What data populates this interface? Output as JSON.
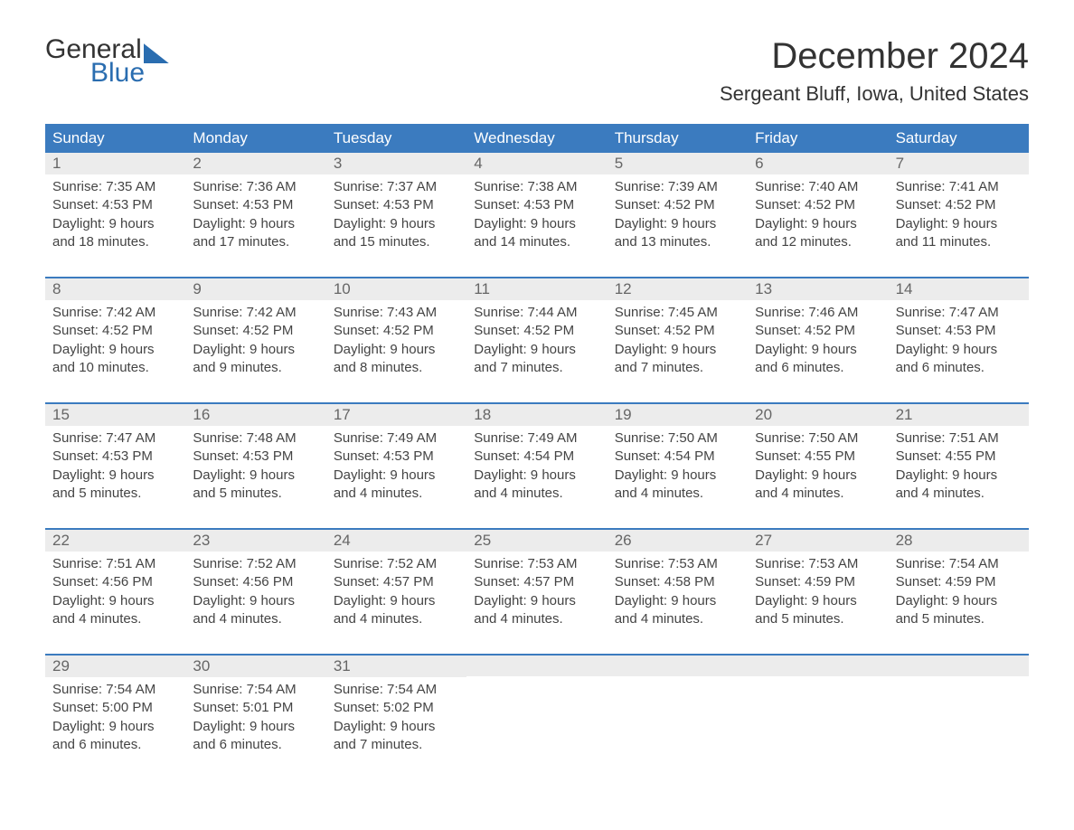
{
  "logo": {
    "text1": "General",
    "text2": "Blue"
  },
  "title": "December 2024",
  "location": "Sergeant Bluff, Iowa, United States",
  "colors": {
    "header_bg": "#3b7bbf",
    "header_text": "#ffffff",
    "daynum_bg": "#ececec",
    "week_border": "#3b7bbf",
    "logo_blue": "#2a6db0",
    "body_text": "#444444"
  },
  "weekdays": [
    "Sunday",
    "Monday",
    "Tuesday",
    "Wednesday",
    "Thursday",
    "Friday",
    "Saturday"
  ],
  "weeks": [
    [
      {
        "n": "1",
        "sunrise": "Sunrise: 7:35 AM",
        "sunset": "Sunset: 4:53 PM",
        "d1": "Daylight: 9 hours",
        "d2": "and 18 minutes."
      },
      {
        "n": "2",
        "sunrise": "Sunrise: 7:36 AM",
        "sunset": "Sunset: 4:53 PM",
        "d1": "Daylight: 9 hours",
        "d2": "and 17 minutes."
      },
      {
        "n": "3",
        "sunrise": "Sunrise: 7:37 AM",
        "sunset": "Sunset: 4:53 PM",
        "d1": "Daylight: 9 hours",
        "d2": "and 15 minutes."
      },
      {
        "n": "4",
        "sunrise": "Sunrise: 7:38 AM",
        "sunset": "Sunset: 4:53 PM",
        "d1": "Daylight: 9 hours",
        "d2": "and 14 minutes."
      },
      {
        "n": "5",
        "sunrise": "Sunrise: 7:39 AM",
        "sunset": "Sunset: 4:52 PM",
        "d1": "Daylight: 9 hours",
        "d2": "and 13 minutes."
      },
      {
        "n": "6",
        "sunrise": "Sunrise: 7:40 AM",
        "sunset": "Sunset: 4:52 PM",
        "d1": "Daylight: 9 hours",
        "d2": "and 12 minutes."
      },
      {
        "n": "7",
        "sunrise": "Sunrise: 7:41 AM",
        "sunset": "Sunset: 4:52 PM",
        "d1": "Daylight: 9 hours",
        "d2": "and 11 minutes."
      }
    ],
    [
      {
        "n": "8",
        "sunrise": "Sunrise: 7:42 AM",
        "sunset": "Sunset: 4:52 PM",
        "d1": "Daylight: 9 hours",
        "d2": "and 10 minutes."
      },
      {
        "n": "9",
        "sunrise": "Sunrise: 7:42 AM",
        "sunset": "Sunset: 4:52 PM",
        "d1": "Daylight: 9 hours",
        "d2": "and 9 minutes."
      },
      {
        "n": "10",
        "sunrise": "Sunrise: 7:43 AM",
        "sunset": "Sunset: 4:52 PM",
        "d1": "Daylight: 9 hours",
        "d2": "and 8 minutes."
      },
      {
        "n": "11",
        "sunrise": "Sunrise: 7:44 AM",
        "sunset": "Sunset: 4:52 PM",
        "d1": "Daylight: 9 hours",
        "d2": "and 7 minutes."
      },
      {
        "n": "12",
        "sunrise": "Sunrise: 7:45 AM",
        "sunset": "Sunset: 4:52 PM",
        "d1": "Daylight: 9 hours",
        "d2": "and 7 minutes."
      },
      {
        "n": "13",
        "sunrise": "Sunrise: 7:46 AM",
        "sunset": "Sunset: 4:52 PM",
        "d1": "Daylight: 9 hours",
        "d2": "and 6 minutes."
      },
      {
        "n": "14",
        "sunrise": "Sunrise: 7:47 AM",
        "sunset": "Sunset: 4:53 PM",
        "d1": "Daylight: 9 hours",
        "d2": "and 6 minutes."
      }
    ],
    [
      {
        "n": "15",
        "sunrise": "Sunrise: 7:47 AM",
        "sunset": "Sunset: 4:53 PM",
        "d1": "Daylight: 9 hours",
        "d2": "and 5 minutes."
      },
      {
        "n": "16",
        "sunrise": "Sunrise: 7:48 AM",
        "sunset": "Sunset: 4:53 PM",
        "d1": "Daylight: 9 hours",
        "d2": "and 5 minutes."
      },
      {
        "n": "17",
        "sunrise": "Sunrise: 7:49 AM",
        "sunset": "Sunset: 4:53 PM",
        "d1": "Daylight: 9 hours",
        "d2": "and 4 minutes."
      },
      {
        "n": "18",
        "sunrise": "Sunrise: 7:49 AM",
        "sunset": "Sunset: 4:54 PM",
        "d1": "Daylight: 9 hours",
        "d2": "and 4 minutes."
      },
      {
        "n": "19",
        "sunrise": "Sunrise: 7:50 AM",
        "sunset": "Sunset: 4:54 PM",
        "d1": "Daylight: 9 hours",
        "d2": "and 4 minutes."
      },
      {
        "n": "20",
        "sunrise": "Sunrise: 7:50 AM",
        "sunset": "Sunset: 4:55 PM",
        "d1": "Daylight: 9 hours",
        "d2": "and 4 minutes."
      },
      {
        "n": "21",
        "sunrise": "Sunrise: 7:51 AM",
        "sunset": "Sunset: 4:55 PM",
        "d1": "Daylight: 9 hours",
        "d2": "and 4 minutes."
      }
    ],
    [
      {
        "n": "22",
        "sunrise": "Sunrise: 7:51 AM",
        "sunset": "Sunset: 4:56 PM",
        "d1": "Daylight: 9 hours",
        "d2": "and 4 minutes."
      },
      {
        "n": "23",
        "sunrise": "Sunrise: 7:52 AM",
        "sunset": "Sunset: 4:56 PM",
        "d1": "Daylight: 9 hours",
        "d2": "and 4 minutes."
      },
      {
        "n": "24",
        "sunrise": "Sunrise: 7:52 AM",
        "sunset": "Sunset: 4:57 PM",
        "d1": "Daylight: 9 hours",
        "d2": "and 4 minutes."
      },
      {
        "n": "25",
        "sunrise": "Sunrise: 7:53 AM",
        "sunset": "Sunset: 4:57 PM",
        "d1": "Daylight: 9 hours",
        "d2": "and 4 minutes."
      },
      {
        "n": "26",
        "sunrise": "Sunrise: 7:53 AM",
        "sunset": "Sunset: 4:58 PM",
        "d1": "Daylight: 9 hours",
        "d2": "and 4 minutes."
      },
      {
        "n": "27",
        "sunrise": "Sunrise: 7:53 AM",
        "sunset": "Sunset: 4:59 PM",
        "d1": "Daylight: 9 hours",
        "d2": "and 5 minutes."
      },
      {
        "n": "28",
        "sunrise": "Sunrise: 7:54 AM",
        "sunset": "Sunset: 4:59 PM",
        "d1": "Daylight: 9 hours",
        "d2": "and 5 minutes."
      }
    ],
    [
      {
        "n": "29",
        "sunrise": "Sunrise: 7:54 AM",
        "sunset": "Sunset: 5:00 PM",
        "d1": "Daylight: 9 hours",
        "d2": "and 6 minutes."
      },
      {
        "n": "30",
        "sunrise": "Sunrise: 7:54 AM",
        "sunset": "Sunset: 5:01 PM",
        "d1": "Daylight: 9 hours",
        "d2": "and 6 minutes."
      },
      {
        "n": "31",
        "sunrise": "Sunrise: 7:54 AM",
        "sunset": "Sunset: 5:02 PM",
        "d1": "Daylight: 9 hours",
        "d2": "and 7 minutes."
      },
      null,
      null,
      null,
      null
    ]
  ]
}
